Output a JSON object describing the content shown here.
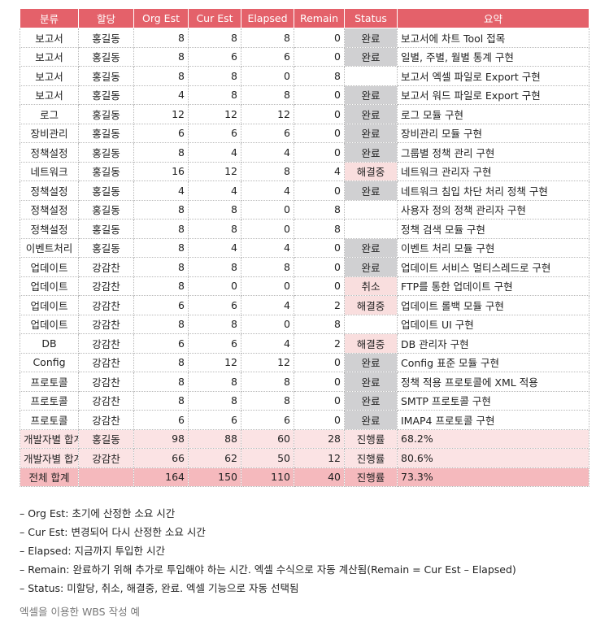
{
  "table": {
    "headers": [
      "분류",
      "할당",
      "Org Est",
      "Cur Est",
      "Elapsed",
      "Remain",
      "Status",
      "요약"
    ],
    "rows": [
      [
        "보고서",
        "홍길동",
        "8",
        "8",
        "8",
        "0",
        "완료",
        "보고서에 차트 Tool 접목"
      ],
      [
        "보고서",
        "홍길동",
        "8",
        "6",
        "6",
        "0",
        "완료",
        "일별, 주별, 월별 통계 구현"
      ],
      [
        "보고서",
        "홍길동",
        "8",
        "8",
        "0",
        "8",
        "",
        "보고서 엑셀 파일로 Export 구현"
      ],
      [
        "보고서",
        "홍길동",
        "4",
        "8",
        "8",
        "0",
        "완료",
        "보고서 워드 파일로 Export 구현"
      ],
      [
        "로그",
        "홍길동",
        "12",
        "12",
        "12",
        "0",
        "완료",
        "로그 모듈 구현"
      ],
      [
        "장비관리",
        "홍길동",
        "6",
        "6",
        "6",
        "0",
        "완료",
        "장비관리 모듈 구현"
      ],
      [
        "정책설정",
        "홍길동",
        "8",
        "4",
        "4",
        "0",
        "완료",
        "그룹별 정책 관리 구현"
      ],
      [
        "네트워크",
        "홍길동",
        "16",
        "12",
        "8",
        "4",
        "해결중",
        "네트워크 관리자 구현"
      ],
      [
        "정책설정",
        "홍길동",
        "4",
        "4",
        "4",
        "0",
        "완료",
        "네트워크 침입 차단 처리 정책 구현"
      ],
      [
        "정책설정",
        "홍길동",
        "8",
        "8",
        "0",
        "8",
        "",
        "사용자 정의 정책 관리자 구현"
      ],
      [
        "정책설정",
        "홍길동",
        "8",
        "8",
        "0",
        "8",
        "",
        "정책 검색 모듈 구현"
      ],
      [
        "이벤트처리",
        "홍길동",
        "8",
        "4",
        "4",
        "0",
        "완료",
        "이벤트 처리 모듈 구현"
      ],
      [
        "업데이트",
        "강감찬",
        "8",
        "8",
        "8",
        "0",
        "완료",
        "업데이트 서비스 멀티스레드로 구현"
      ],
      [
        "업데이트",
        "강감찬",
        "8",
        "0",
        "0",
        "0",
        "취소",
        "FTP를 통한 업데이트 구현"
      ],
      [
        "업데이트",
        "강감찬",
        "6",
        "6",
        "4",
        "2",
        "해결중",
        "업데이트 롤백 모듈 구현"
      ],
      [
        "업데이트",
        "강감찬",
        "8",
        "8",
        "0",
        "8",
        "",
        "업데이트 UI 구현"
      ],
      [
        "DB",
        "강감찬",
        "6",
        "6",
        "4",
        "2",
        "해결중",
        "DB 관리자 구현"
      ],
      [
        "Config",
        "강감찬",
        "8",
        "12",
        "12",
        "0",
        "완료",
        "Config 표준 모듈 구현"
      ],
      [
        "프로토콜",
        "강감찬",
        "8",
        "8",
        "8",
        "0",
        "완료",
        "정책 적용 프로토콜에 XML 적용"
      ],
      [
        "프로토콜",
        "강감찬",
        "8",
        "8",
        "8",
        "0",
        "완료",
        "SMTP 프로토콜 구현"
      ],
      [
        "프로토콜",
        "강감찬",
        "6",
        "6",
        "6",
        "0",
        "완료",
        "IMAP4 프로토콜 구현"
      ]
    ],
    "subtotals": [
      [
        "개발자별 합계",
        "홍길동",
        "98",
        "88",
        "60",
        "28",
        "진행률",
        "68.2%"
      ],
      [
        "개발자별 합계",
        "강감찬",
        "66",
        "62",
        "50",
        "12",
        "진행률",
        "80.6%"
      ]
    ],
    "total": [
      "전체 합계",
      "",
      "164",
      "150",
      "110",
      "40",
      "진행률",
      "73.3%"
    ]
  },
  "notes": [
    "– Org Est: 초기에 산정한 소요 시간",
    "– Cur Est: 변경되어 다시 산정한 소요 시간",
    "– Elapsed: 지금까지 투입한 시간",
    "– Remain: 완료하기 위해 추가로 투입해야 하는 시간. 엑셀 수식으로 자동 계산됨(Remain = Cur Est – Elapsed)",
    "– Status: 미할당, 취소, 해결중, 완료. 엑셀 기능으로 자동 선택됨"
  ],
  "caption": "엑셀을 이용한 WBS 작성 예",
  "colors": {
    "header": "#e4616a",
    "status_done": "#d0d0d2",
    "status_pending": "#f9dede",
    "subtotal_row": "#fbe3e4",
    "total_row": "#f5b9bd"
  }
}
